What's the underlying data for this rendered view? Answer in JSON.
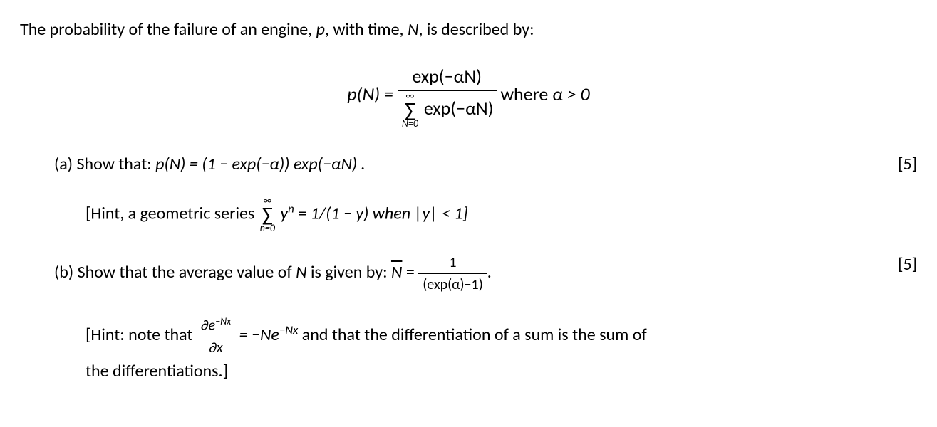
{
  "colors": {
    "text": "#000000",
    "background": "#ffffff"
  },
  "typography": {
    "body_fontsize": 24,
    "equation_fontsize": 26,
    "font_family": "Calibri"
  },
  "intro": {
    "pre_p": "The probability of the failure of an engine, ",
    "p_var": "p",
    "mid1": ", with time, ",
    "n_var": "N",
    "post": ", is described by:"
  },
  "main_equation": {
    "lhs": "p(N) = ",
    "numerator": "exp(−αN)",
    "denom_sum_top": "∞",
    "denom_sum_bot": "N=0",
    "denom_after": " exp(−αN)",
    "where": " where ",
    "condition": "α > 0"
  },
  "part_a": {
    "label": "(a)",
    "text_pre": " Show that:  ",
    "equation": "p(N) = (1 − exp(−α)) exp(−αN)  .",
    "marks": "[5]",
    "hint_pre": "[Hint, a geometric series ",
    "hint_sum_top": "∞",
    "hint_sum_bot": "n=0",
    "hint_yn": " y",
    "hint_exp": "n",
    "hint_eq": " = 1/(1 − y) when |y| < 1]"
  },
  "part_b": {
    "label": "(b)",
    "text_pre": " Show that the average value of ",
    "n_var": "N",
    "text_mid": " is given by:   ",
    "nbar": "N",
    "equals": "  =  ",
    "frac_num": "1",
    "frac_den": "(exp(α)−1)",
    "period": ".",
    "marks": "[5]",
    "hint_pre": "[Hint: note that  ",
    "hint_frac_num_pre": "∂e",
    "hint_frac_num_exp": "−Nx",
    "hint_frac_den": "∂x",
    "hint_mid": "  =  −Ne",
    "hint_exp2": "−Nx",
    "hint_post": "  and that the differentiation of a sum is the sum of",
    "hint_line2": "the differentiations.]"
  }
}
